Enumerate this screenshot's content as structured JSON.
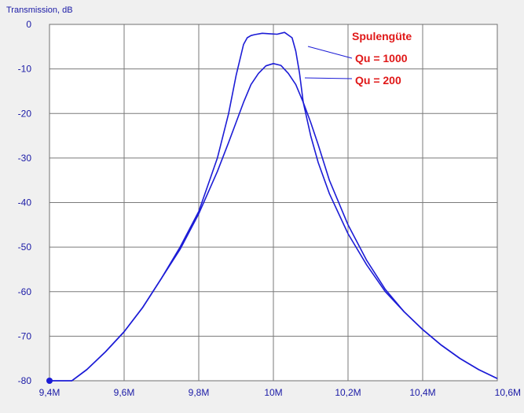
{
  "chart_data": {
    "type": "line",
    "title": "",
    "ylabel": "Transmission, dB",
    "xlabel": "",
    "xlim": [
      9.4,
      10.6
    ],
    "ylim": [
      -80,
      0
    ],
    "x_ticks": [
      9.4,
      9.6,
      9.8,
      10.0,
      10.2,
      10.4,
      10.6
    ],
    "x_tick_labels": [
      "9,4M",
      "9,6M",
      "9,8M",
      "10M",
      "10,2M",
      "10,4M",
      "10,6M"
    ],
    "y_ticks": [
      0,
      -10,
      -20,
      -30,
      -40,
      -50,
      -60,
      -70,
      -80
    ],
    "y_tick_labels": [
      "0",
      "-10",
      "-20",
      "-30",
      "-40",
      "-50",
      "-60",
      "-70",
      "-80"
    ],
    "grid": true,
    "legend_title": "Spulengüte",
    "series": [
      {
        "name": "Qu = 1000",
        "color": "#1c1cd6",
        "x": [
          9.4,
          9.46,
          9.5,
          9.55,
          9.6,
          9.65,
          9.7,
          9.75,
          9.8,
          9.85,
          9.88,
          9.9,
          9.92,
          9.93,
          9.94,
          9.95,
          9.97,
          9.99,
          10.01,
          10.03,
          10.05,
          10.06,
          10.07,
          10.08,
          10.1,
          10.12,
          10.15,
          10.2,
          10.25,
          10.3,
          10.35,
          10.4,
          10.45,
          10.5,
          10.55,
          10.6
        ],
        "y": [
          -80,
          -80,
          -77.5,
          -73.5,
          -69,
          -63.5,
          -57,
          -50,
          -42,
          -30,
          -20,
          -11.5,
          -4.5,
          -3,
          -2.5,
          -2.3,
          -2,
          -2.1,
          -2.2,
          -1.8,
          -3,
          -6,
          -11,
          -17.5,
          -25,
          -31,
          -38,
          -47,
          -54,
          -60,
          -64.5,
          -68.5,
          -72,
          -75,
          -77.5,
          -79.5
        ]
      },
      {
        "name": "Qu = 200",
        "color": "#1c1cd6",
        "x": [
          9.4,
          9.46,
          9.5,
          9.55,
          9.6,
          9.65,
          9.7,
          9.75,
          9.8,
          9.85,
          9.88,
          9.9,
          9.92,
          9.94,
          9.96,
          9.98,
          10.0,
          10.02,
          10.04,
          10.06,
          10.08,
          10.1,
          10.12,
          10.15,
          10.2,
          10.25,
          10.3,
          10.35,
          10.4,
          10.45,
          10.5,
          10.55,
          10.6
        ],
        "y": [
          -80,
          -80,
          -77.5,
          -73.5,
          -69,
          -63.5,
          -57,
          -50.5,
          -42.5,
          -33,
          -26.5,
          -22,
          -17.5,
          -13.5,
          -11,
          -9.3,
          -8.8,
          -9.2,
          -11,
          -13.5,
          -17.5,
          -22,
          -27,
          -35,
          -45,
          -53,
          -59.5,
          -64.5,
          -68.5,
          -72,
          -75,
          -77.5,
          -79.5
        ]
      }
    ]
  }
}
